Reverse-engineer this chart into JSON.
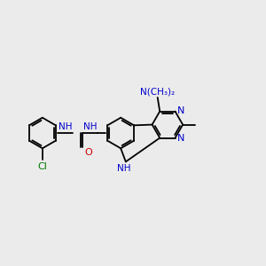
{
  "bg_color": "#ebebeb",
  "bond_color": "#000000",
  "N_color": "#0000cc",
  "O_color": "#cc0000",
  "Cl_color": "#007700",
  "fs": 7.5,
  "lw": 1.3,
  "figsize": [
    3.0,
    3.0
  ],
  "dpi": 100,
  "ring_r": 0.55,
  "xlim": [
    0,
    9.5
  ],
  "ylim": [
    1.5,
    8.5
  ]
}
